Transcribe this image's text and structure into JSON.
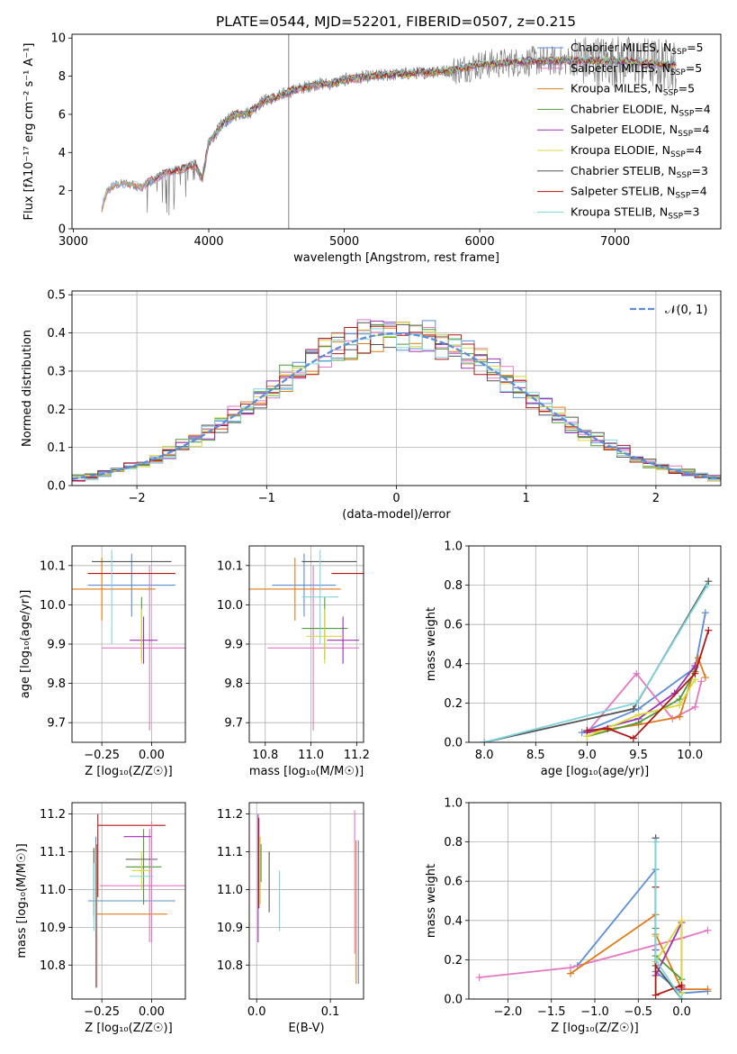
{
  "title": "PLATE=0544, MJD=52201, FIBERID=0507, z=0.215",
  "colors": {
    "Chabrier MILES": "#5b8ed6",
    "Salpeter MILES": "#e377c2",
    "Kroupa MILES": "#e07b1a",
    "Chabrier ELODIE": "#4f9a3a",
    "Salpeter ELODIE": "#9b30b0",
    "Kroupa ELODIE": "#d9d93a",
    "Chabrier STELIB": "#555555",
    "Salpeter STELIB": "#b01818",
    "Kroupa STELIB": "#7fd3dc",
    "data": "#808080"
  },
  "chart_data": [
    {
      "type": "line",
      "id": "spectrum",
      "xlabel": "wavelength [Angstrom, rest frame]",
      "ylabel": "Flux [fλ10⁻¹⁷ erg cm⁻² s⁻¹ A⁻¹]",
      "xlim": [
        2990,
        7780
      ],
      "ylim": [
        0,
        10.2
      ],
      "xticks": [
        "3000",
        "4000",
        "5000",
        "6000",
        "7000"
      ],
      "yticks": [
        "0",
        "2",
        "4",
        "6",
        "8",
        "10"
      ],
      "legend_position": "top-right",
      "legend": [
        {
          "label": "Chabrier MILES, N",
          "sub": "SSP",
          "tail": "=5"
        },
        {
          "label": "Salpeter MILES, N",
          "sub": "SSP",
          "tail": "=5"
        },
        {
          "label": "Kroupa MILES, N",
          "sub": "SSP",
          "tail": "=5"
        },
        {
          "label": "Chabrier ELODIE, N",
          "sub": "SSP",
          "tail": "=4"
        },
        {
          "label": "Salpeter ELODIE, N",
          "sub": "SSP",
          "tail": "=4"
        },
        {
          "label": "Kroupa ELODIE, N",
          "sub": "SSP",
          "tail": "=4"
        },
        {
          "label": "Chabrier STELIB, N",
          "sub": "SSP",
          "tail": "=3"
        },
        {
          "label": "Salpeter STELIB, N",
          "sub": "SSP",
          "tail": "=4"
        },
        {
          "label": "Kroupa STELIB, N",
          "sub": "SSP",
          "tail": "=3"
        }
      ],
      "continuum": {
        "wavelength": [
          3200,
          3250,
          3300,
          3400,
          3500,
          3600,
          3700,
          3800,
          3900,
          3950,
          4000,
          4100,
          4200,
          4300,
          4400,
          4500,
          4600,
          4700,
          4800,
          4900,
          5000,
          5200,
          5400,
          5600,
          5800,
          6000,
          6200,
          6400,
          6600,
          6800,
          7000,
          7200,
          7400
        ],
        "flux": [
          0.8,
          2.0,
          2.3,
          2.4,
          2.2,
          2.6,
          3.0,
          3.1,
          3.4,
          2.6,
          4.5,
          5.5,
          6.0,
          6.1,
          6.7,
          6.9,
          7.2,
          7.4,
          7.6,
          7.6,
          7.8,
          8.0,
          8.1,
          8.2,
          8.3,
          8.6,
          8.7,
          8.8,
          8.8,
          8.8,
          8.8,
          8.7,
          8.6
        ]
      }
    },
    {
      "type": "line",
      "id": "residuals",
      "xlabel": "(data-model)/error",
      "ylabel": "Normed distribution",
      "xlim": [
        -2.5,
        2.5
      ],
      "ylim": [
        0,
        0.51
      ],
      "xticks": [
        "−2",
        "−1",
        "0",
        "1",
        "2"
      ],
      "yticks": [
        "0.0",
        "0.1",
        "0.2",
        "0.3",
        "0.4",
        "0.5"
      ],
      "grid": true,
      "legend": [
        {
          "label": "𝒩(0, 1)"
        }
      ],
      "legend_position": "top-right"
    },
    {
      "type": "scatter",
      "id": "age-vs-Z",
      "xlabel": "Z [log₁₀(Z/Z☉)]",
      "ylabel": "age  [log₁₀(age/yr)]",
      "xlim": [
        -0.4,
        0.17
      ],
      "ylim": [
        9.65,
        10.15
      ],
      "xticks": [
        "−0.25",
        "0.00"
      ],
      "yticks": [
        "9.7",
        "9.8",
        "9.9",
        "10.0",
        "10.1"
      ],
      "grid": true,
      "errorbars": [
        {
          "model": "Chabrier MILES",
          "x": -0.1,
          "xerr": 0.22,
          "y": 10.05,
          "yerr": 0.08
        },
        {
          "model": "Salpeter MILES",
          "x": -0.01,
          "xerr": 0.24,
          "y": 9.89,
          "yerr": 0.21
        },
        {
          "model": "Kroupa MILES",
          "x": -0.25,
          "xerr": 0.27,
          "y": 10.04,
          "yerr": 0.08
        },
        {
          "model": "Chabrier ELODIE",
          "x": -0.05,
          "xerr": 0.0,
          "y": 9.94,
          "yerr": 0.08
        },
        {
          "model": "Salpeter ELODIE",
          "x": -0.04,
          "xerr": 0.07,
          "y": 9.91,
          "yerr": 0.06
        },
        {
          "model": "Kroupa ELODIE",
          "x": -0.05,
          "xerr": 0.0,
          "y": 9.92,
          "yerr": 0.07
        },
        {
          "model": "Chabrier STELIB",
          "x": -0.1,
          "xerr": 0.2,
          "y": 10.11,
          "yerr": 0.0
        },
        {
          "model": "Salpeter STELIB",
          "x": -0.1,
          "xerr": 0.22,
          "y": 10.08,
          "yerr": 0.0
        },
        {
          "model": "Kroupa STELIB",
          "x": -0.2,
          "xerr": 0.0,
          "y": 10.02,
          "yerr": 0.12
        }
      ]
    },
    {
      "type": "scatter",
      "id": "age-vs-mass",
      "xlabel": "mass [log₁₀(M/M☉)]",
      "ylabel": "",
      "xlim": [
        10.73,
        11.23
      ],
      "ylim": [
        9.65,
        10.15
      ],
      "xticks": [
        "10.8",
        "11.0",
        "11.2"
      ],
      "yticks": [
        "9.7",
        "9.8",
        "9.9",
        "10.0",
        "10.1"
      ],
      "grid": true,
      "errorbars": [
        {
          "model": "Chabrier MILES",
          "x": 10.97,
          "xerr": 0.14,
          "y": 10.05,
          "yerr": 0.08
        },
        {
          "model": "Salpeter MILES",
          "x": 11.01,
          "xerr": 0.2,
          "y": 9.89,
          "yerr": 0.21
        },
        {
          "model": "Kroupa MILES",
          "x": 10.93,
          "xerr": 0.2,
          "y": 10.04,
          "yerr": 0.08
        },
        {
          "model": "Chabrier ELODIE",
          "x": 11.06,
          "xerr": 0.1,
          "y": 9.94,
          "yerr": 0.08
        },
        {
          "model": "Salpeter ELODIE",
          "x": 11.14,
          "xerr": 0.07,
          "y": 9.91,
          "yerr": 0.06
        },
        {
          "model": "Kroupa ELODIE",
          "x": 11.06,
          "xerr": 0.08,
          "y": 9.92,
          "yerr": 0.07
        },
        {
          "model": "Chabrier STELIB",
          "x": 11.08,
          "xerr": 0.12,
          "y": 10.11,
          "yerr": 0.0
        },
        {
          "model": "Salpeter STELIB",
          "x": 11.17,
          "xerr": 0.08,
          "y": 10.08,
          "yerr": 0.0
        },
        {
          "model": "Kroupa STELIB",
          "x": 11.04,
          "xerr": 0.08,
          "y": 10.02,
          "yerr": 0.12
        }
      ]
    },
    {
      "type": "line",
      "id": "weight-vs-age",
      "xlabel": "age  [log₁₀(age/yr)]",
      "ylabel": "mass weight",
      "xlim": [
        7.85,
        10.3
      ],
      "ylim": [
        0,
        1.0
      ],
      "xticks": [
        "8.0",
        "8.5",
        "9.0",
        "9.5",
        "10.0"
      ],
      "yticks": [
        "0.0",
        "0.2",
        "0.4",
        "0.6",
        "0.8",
        "1.0"
      ],
      "grid": true,
      "series": [
        {
          "model": "Chabrier MILES",
          "x": [
            8.95,
            9.5,
            10.05,
            10.15
          ],
          "y": [
            0.05,
            0.17,
            0.38,
            0.66
          ]
        },
        {
          "model": "Salpeter MILES",
          "x": [
            9.0,
            9.48,
            9.83,
            10.05,
            10.11
          ],
          "y": [
            0.05,
            0.35,
            0.12,
            0.18,
            0.31
          ]
        },
        {
          "model": "Kroupa MILES",
          "x": [
            9.0,
            9.5,
            9.9,
            10.08,
            10.15
          ],
          "y": [
            0.05,
            0.09,
            0.13,
            0.43,
            0.33
          ]
        },
        {
          "model": "Chabrier ELODIE",
          "x": [
            9.0,
            9.5,
            9.9,
            10.05
          ],
          "y": [
            0.03,
            0.1,
            0.22,
            0.36
          ]
        },
        {
          "model": "Salpeter ELODIE",
          "x": [
            9.0,
            9.5,
            9.85,
            10.05
          ],
          "y": [
            0.05,
            0.12,
            0.25,
            0.39
          ]
        },
        {
          "model": "Kroupa ELODIE",
          "x": [
            9.0,
            9.5,
            9.9,
            10.05
          ],
          "y": [
            0.03,
            0.14,
            0.19,
            0.32
          ]
        },
        {
          "model": "Chabrier STELIB",
          "x": [
            8.0,
            9.45,
            10.18
          ],
          "y": [
            0.0,
            0.17,
            0.82
          ]
        },
        {
          "model": "Salpeter STELIB",
          "x": [
            9.0,
            9.2,
            9.45,
            10.05,
            10.18
          ],
          "y": [
            0.06,
            0.07,
            0.02,
            0.35,
            0.57
          ]
        },
        {
          "model": "Kroupa STELIB",
          "x": [
            8.0,
            9.48,
            10.17
          ],
          "y": [
            0.0,
            0.2,
            0.8
          ]
        }
      ]
    },
    {
      "type": "scatter",
      "id": "mass-vs-Z",
      "xlabel": "Z [log₁₀(Z/Z☉)]",
      "ylabel": "mass [log₁₀(M/M☉)]",
      "xlim": [
        -0.4,
        0.17
      ],
      "ylim": [
        10.71,
        11.23
      ],
      "xticks": [
        "−0.25",
        "0.00"
      ],
      "yticks": [
        "10.8",
        "10.9",
        "11.0",
        "11.1",
        "11.2"
      ],
      "grid": true,
      "errorbars": [
        {
          "model": "Chabrier MILES",
          "x": -0.1,
          "xerr": 0.22,
          "y": 10.97,
          "yerr": 0.0
        },
        {
          "model": "Salpeter MILES",
          "x": -0.01,
          "xerr": 0.25,
          "y": 11.01,
          "yerr": 0.15
        },
        {
          "model": "Kroupa MILES",
          "x": -0.1,
          "xerr": 0.18,
          "y": 10.935,
          "yerr": 0.0
        },
        {
          "model": "Chabrier ELODIE",
          "x": -0.04,
          "xerr": 0.09,
          "y": 11.06,
          "yerr": 0.1
        },
        {
          "model": "Salpeter ELODIE",
          "x": -0.07,
          "xerr": 0.07,
          "y": 11.14,
          "yerr": 0.0
        },
        {
          "model": "Kroupa ELODIE",
          "x": -0.05,
          "xerr": 0.05,
          "y": 11.05,
          "yerr": 0.05
        },
        {
          "model": "Chabrier STELIB",
          "x": -0.05,
          "xerr": 0.08,
          "y": 11.08,
          "yerr": 0.0
        },
        {
          "model": "Salpeter STELIB",
          "x": -0.1,
          "xerr": 0.17,
          "y": 11.17,
          "yerr": 0.0
        },
        {
          "model": "Kroupa STELIB",
          "x": -0.05,
          "xerr": 0.06,
          "y": 11.035,
          "yerr": 0.0
        }
      ],
      "vbars": [
        {
          "model": "Chabrier MILES",
          "x": -0.28,
          "y": 10.94,
          "yerr": 0.2
        },
        {
          "model": "Kroupa MILES",
          "x": -0.275,
          "y": 10.93,
          "yerr": 0.19
        },
        {
          "model": "Salpeter STELIB",
          "x": -0.27,
          "y": 11.09,
          "yerr": 0.11
        },
        {
          "model": "Chabrier STELIB",
          "x": -0.29,
          "y": 11.02,
          "yerr": 0.09
        },
        {
          "model": "Kroupa STELIB",
          "x": -0.29,
          "y": 10.98,
          "yerr": 0.09
        },
        {
          "model": "Salpeter MILES",
          "x": 0.0,
          "y": 11.02,
          "yerr": 0.16
        }
      ]
    },
    {
      "type": "scatter",
      "id": "mass-vs-EBV",
      "xlabel": "E(B-V)",
      "ylabel": "",
      "xlim": [
        -0.01,
        0.145
      ],
      "ylim": [
        10.71,
        11.23
      ],
      "xticks": [
        "0.0",
        "0.1"
      ],
      "yticks": [
        "10.8",
        "10.9",
        "11.0",
        "11.1",
        "11.2"
      ],
      "grid": true,
      "errorbars": [
        {
          "model": "Salpeter ELODIE",
          "x": 0.002,
          "y": 11.03,
          "yerr": 0.17
        },
        {
          "model": "Kroupa ELODIE",
          "x": 0.005,
          "y": 11.05,
          "yerr": 0.09
        },
        {
          "model": "Salpeter STELIB",
          "x": 0.003,
          "y": 11.07,
          "yerr": 0.12
        },
        {
          "model": "Chabrier ELODIE",
          "x": 0.006,
          "y": 11.07,
          "yerr": 0.05
        },
        {
          "model": "Chabrier STELIB",
          "x": 0.017,
          "y": 11.02,
          "yerr": 0.08
        },
        {
          "model": "Kroupa STELIB",
          "x": 0.031,
          "y": 10.97,
          "yerr": 0.08
        },
        {
          "model": "Salpeter MILES",
          "x": 0.133,
          "y": 11.02,
          "yerr": 0.19
        },
        {
          "model": "Kroupa MILES",
          "x": 0.135,
          "y": 10.94,
          "yerr": 0.19
        },
        {
          "model": "Chabrier MILES",
          "x": 0.138,
          "y": 10.94,
          "yerr": 0.19
        }
      ]
    },
    {
      "type": "line",
      "id": "weight-vs-Z",
      "xlabel": "Z [log₁₀(Z/Z☉)]",
      "ylabel": "mass weight",
      "xlim": [
        -2.45,
        0.45
      ],
      "ylim": [
        0,
        1.0
      ],
      "xticks": [
        "−2.0",
        "−1.5",
        "−1.0",
        "−0.5",
        "0.0"
      ],
      "yticks": [
        "0.0",
        "0.2",
        "0.4",
        "0.6",
        "0.8",
        "1.0"
      ],
      "grid": true,
      "series": [
        {
          "model": "Chabrier MILES",
          "x": [
            -1.2,
            -0.3,
            -0.3,
            0.0,
            0.3
          ],
          "y": [
            0.17,
            0.66,
            0.14,
            0.03,
            0.04
          ]
        },
        {
          "model": "Salpeter MILES",
          "x": [
            -2.33,
            -1.28,
            0.0,
            0.3
          ],
          "y": [
            0.11,
            0.16,
            0.31,
            0.35
          ]
        },
        {
          "model": "Kroupa MILES",
          "x": [
            -1.28,
            -0.3,
            -0.3,
            0.0,
            0.3
          ],
          "y": [
            0.13,
            0.43,
            0.33,
            0.05,
            0.05
          ]
        },
        {
          "model": "Chabrier ELODIE",
          "x": [
            -0.3,
            -0.3,
            0.0,
            0.0
          ],
          "y": [
            0.36,
            0.22,
            0.1,
            0.03
          ]
        },
        {
          "model": "Salpeter ELODIE",
          "x": [
            -0.3,
            -0.3,
            0.0,
            0.0
          ],
          "y": [
            0.25,
            0.12,
            0.39,
            0.05
          ]
        },
        {
          "model": "Kroupa ELODIE",
          "x": [
            -0.3,
            -0.3,
            0.0,
            0.0
          ],
          "y": [
            0.32,
            0.19,
            0.4,
            0.03
          ]
        },
        {
          "model": "Chabrier STELIB",
          "x": [
            -0.3,
            -0.3,
            0.0
          ],
          "y": [
            0.82,
            0.17,
            0.0
          ]
        },
        {
          "model": "Salpeter STELIB",
          "x": [
            -0.3,
            -0.3,
            0.0,
            0.0
          ],
          "y": [
            0.57,
            0.02,
            0.07,
            0.06
          ]
        },
        {
          "model": "Kroupa STELIB",
          "x": [
            -0.3,
            -0.3,
            0.0
          ],
          "y": [
            0.8,
            0.2,
            0.0
          ]
        }
      ]
    }
  ]
}
